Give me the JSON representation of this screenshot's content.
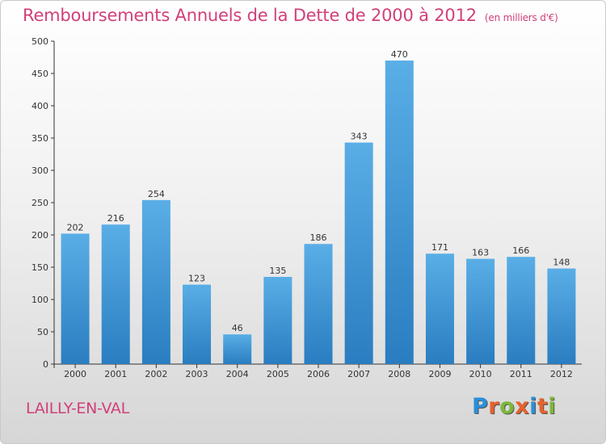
{
  "title": {
    "main": "Remboursements Annuels de la Dette de 2000 à 2012",
    "unit": "(en milliers d'€)"
  },
  "commune": "LAILLY-EN-VAL",
  "logo": {
    "text": "Proxiti",
    "colors": [
      "#2a8fd8",
      "#e8622c",
      "#7db83a",
      "#e8622c",
      "#2a8fd8",
      "#e8622c",
      "#7db83a"
    ]
  },
  "colors": {
    "title": "#d1407a",
    "bar_top": "#5aaee6",
    "bar_bottom": "#2a7dc0",
    "axis": "#333333"
  },
  "chart_data": {
    "type": "bar",
    "categories": [
      "2000",
      "2001",
      "2002",
      "2003",
      "2004",
      "2005",
      "2006",
      "2007",
      "2008",
      "2009",
      "2010",
      "2011",
      "2012"
    ],
    "values": [
      202,
      216,
      254,
      123,
      46,
      135,
      186,
      343,
      470,
      171,
      163,
      166,
      148
    ],
    "title": "Remboursements Annuels de la Dette de 2000 à 2012",
    "xlabel": "",
    "ylabel": "",
    "ylim": [
      0,
      500
    ],
    "yticks": [
      0,
      50,
      100,
      150,
      200,
      250,
      300,
      350,
      400,
      450,
      500
    ],
    "grid": false,
    "legend": "none"
  }
}
